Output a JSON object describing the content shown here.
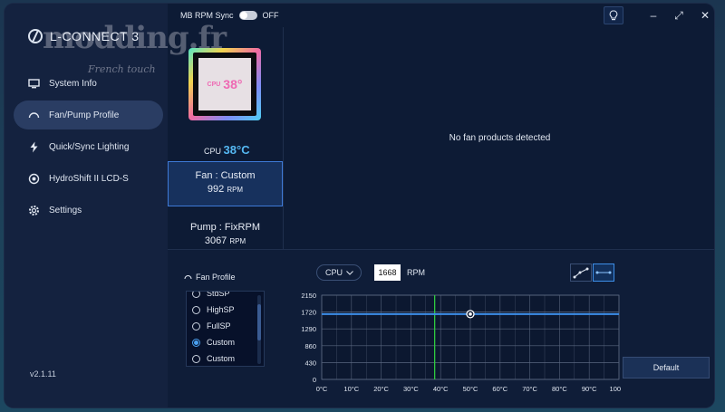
{
  "app": {
    "brand": "L-CONNECT 3",
    "version": "v2.1.11",
    "watermark": "modding.fr",
    "watermark_sub": "French touch"
  },
  "sidebar": {
    "items": [
      {
        "label": "System Info",
        "icon": "monitor-icon",
        "active": false
      },
      {
        "label": "Fan/Pump Profile",
        "icon": "gauge-icon",
        "active": true
      },
      {
        "label": "Quick/Sync Lighting",
        "icon": "lightning-icon",
        "active": false
      },
      {
        "label": "HydroShift II LCD-S",
        "icon": "cooler-icon",
        "active": false
      },
      {
        "label": "Settings",
        "icon": "gear-icon",
        "active": false
      }
    ]
  },
  "topbar": {
    "mb_rpm_sync_label": "MB RPM Sync",
    "mb_rpm_sync_state": "OFF"
  },
  "device": {
    "screen_label": "CPU",
    "screen_temp": "38°",
    "cpu_label": "CPU",
    "cpu_temp": "38°C",
    "fan": {
      "title": "Fan : Custom",
      "rpm": "992",
      "unit": "RPM"
    },
    "pump": {
      "title": "Pump : FixRPM",
      "rpm": "3067",
      "unit": "RPM"
    }
  },
  "main": {
    "no_fan_message": "No fan products detected"
  },
  "profile": {
    "label": "Fan Profile",
    "options": [
      "StdSP",
      "HighSP",
      "FullSP",
      "Custom",
      "Custom"
    ],
    "selected_index": 3,
    "source": "CPU",
    "rpm_value": "1668",
    "rpm_unit": "RPM",
    "default_label": "Default"
  },
  "chart_data": {
    "type": "line",
    "x_ticks": [
      "0°C",
      "10°C",
      "20°C",
      "30°C",
      "40°C",
      "50°C",
      "60°C",
      "70°C",
      "80°C",
      "90°C",
      "100°C"
    ],
    "y_ticks": [
      "0",
      "430",
      "860",
      "1290",
      "1720",
      "2150"
    ],
    "xlim": [
      0,
      100
    ],
    "ylim": [
      0,
      2150
    ],
    "series": [
      {
        "values": [
          [
            0,
            1668
          ],
          [
            100,
            1668
          ]
        ]
      }
    ],
    "handle_point": [
      50,
      1668
    ],
    "current_temp_marker": 38,
    "colors": {
      "line": "#3d8ee8",
      "marker": "#2ecc40",
      "grid": "#5a6780"
    }
  }
}
